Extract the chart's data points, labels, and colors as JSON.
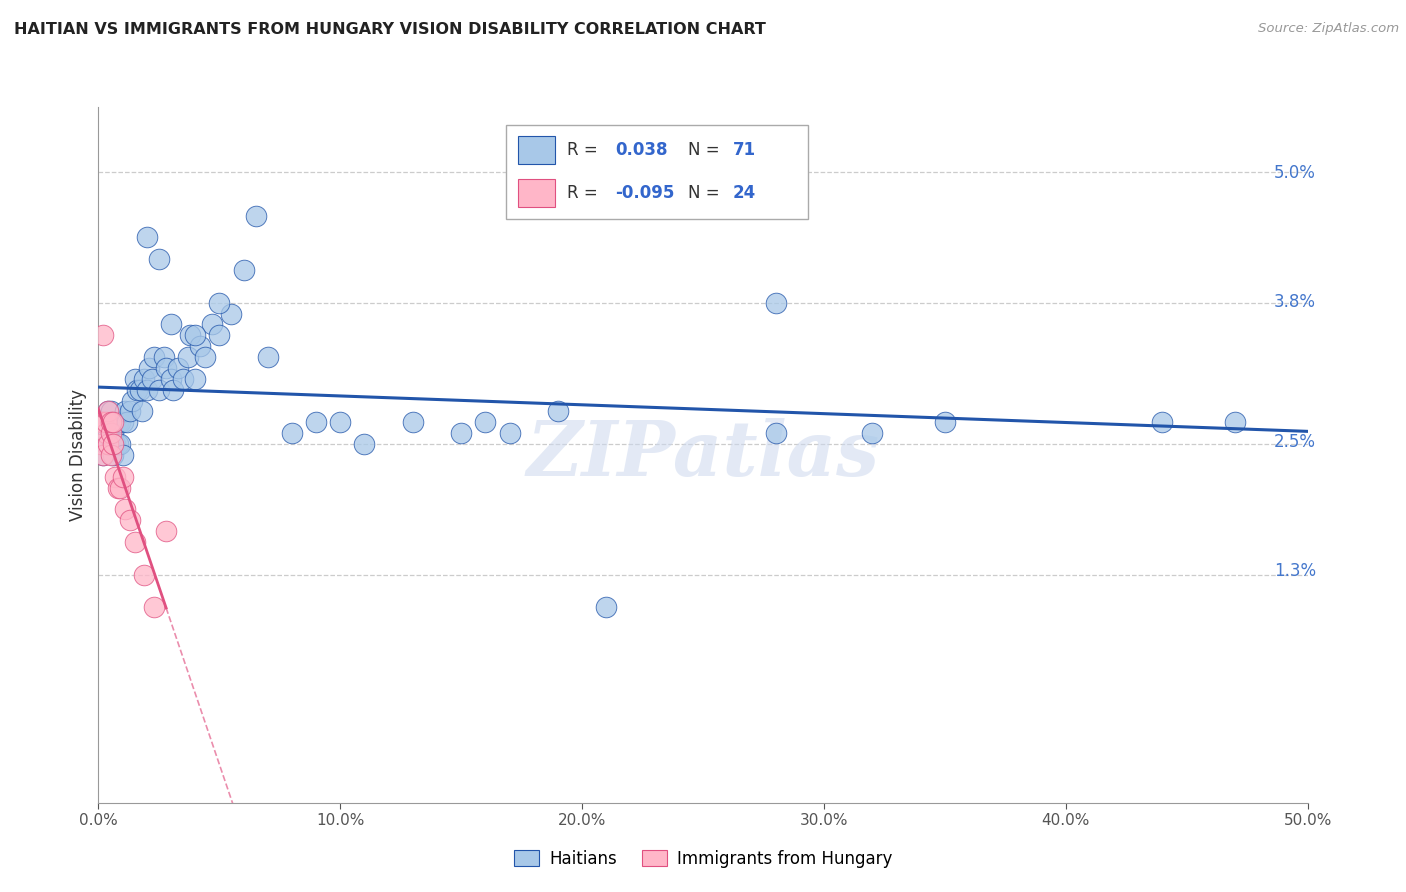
{
  "title": "HAITIAN VS IMMIGRANTS FROM HUNGARY VISION DISABILITY CORRELATION CHART",
  "source": "Source: ZipAtlas.com",
  "ylabel": "Vision Disability",
  "color_blue": "#a8c8e8",
  "color_pink": "#ffb6c8",
  "line_blue": "#2255aa",
  "line_pink": "#e05080",
  "xmin": 0.0,
  "xmax": 0.5,
  "ymin": -0.008,
  "ymax": 0.056,
  "yticks": [
    0.013,
    0.025,
    0.038,
    0.05
  ],
  "yticklabels": [
    "1.3%",
    "2.5%",
    "3.8%",
    "5.0%"
  ],
  "xticks": [
    0.0,
    0.1,
    0.2,
    0.3,
    0.4,
    0.5
  ],
  "xticklabels": [
    "0.0%",
    "10.0%",
    "20.0%",
    "30.0%",
    "40.0%",
    "50.0%"
  ],
  "haitians_x": [
    0.001,
    0.002,
    0.002,
    0.003,
    0.003,
    0.004,
    0.004,
    0.005,
    0.005,
    0.006,
    0.006,
    0.007,
    0.007,
    0.008,
    0.008,
    0.009,
    0.009,
    0.01,
    0.01,
    0.011,
    0.012,
    0.013,
    0.014,
    0.015,
    0.016,
    0.017,
    0.018,
    0.019,
    0.02,
    0.021,
    0.022,
    0.023,
    0.025,
    0.027,
    0.028,
    0.03,
    0.031,
    0.033,
    0.035,
    0.037,
    0.038,
    0.04,
    0.042,
    0.044,
    0.047,
    0.05,
    0.055,
    0.06,
    0.065,
    0.07,
    0.08,
    0.09,
    0.1,
    0.11,
    0.13,
    0.15,
    0.16,
    0.17,
    0.19,
    0.21,
    0.28,
    0.35,
    0.02,
    0.025,
    0.03,
    0.04,
    0.05,
    0.28,
    0.32,
    0.44,
    0.47
  ],
  "haitians_y": [
    0.025,
    0.024,
    0.027,
    0.025,
    0.027,
    0.026,
    0.028,
    0.025,
    0.028,
    0.024,
    0.026,
    0.025,
    0.027,
    0.025,
    0.027,
    0.025,
    0.027,
    0.024,
    0.027,
    0.028,
    0.027,
    0.028,
    0.029,
    0.031,
    0.03,
    0.03,
    0.028,
    0.031,
    0.03,
    0.032,
    0.031,
    0.033,
    0.03,
    0.033,
    0.032,
    0.031,
    0.03,
    0.032,
    0.031,
    0.033,
    0.035,
    0.031,
    0.034,
    0.033,
    0.036,
    0.035,
    0.037,
    0.041,
    0.046,
    0.033,
    0.026,
    0.027,
    0.027,
    0.025,
    0.027,
    0.026,
    0.027,
    0.026,
    0.028,
    0.01,
    0.038,
    0.027,
    0.044,
    0.042,
    0.036,
    0.035,
    0.038,
    0.026,
    0.026,
    0.027,
    0.027
  ],
  "hungary_x": [
    0.001,
    0.001,
    0.002,
    0.002,
    0.002,
    0.003,
    0.003,
    0.004,
    0.004,
    0.005,
    0.005,
    0.005,
    0.006,
    0.006,
    0.007,
    0.008,
    0.009,
    0.01,
    0.011,
    0.013,
    0.015,
    0.019,
    0.023,
    0.028
  ],
  "hungary_y": [
    0.025,
    0.027,
    0.024,
    0.027,
    0.035,
    0.026,
    0.027,
    0.025,
    0.028,
    0.026,
    0.024,
    0.027,
    0.025,
    0.027,
    0.022,
    0.021,
    0.021,
    0.022,
    0.019,
    0.018,
    0.016,
    0.013,
    0.01,
    0.017
  ]
}
